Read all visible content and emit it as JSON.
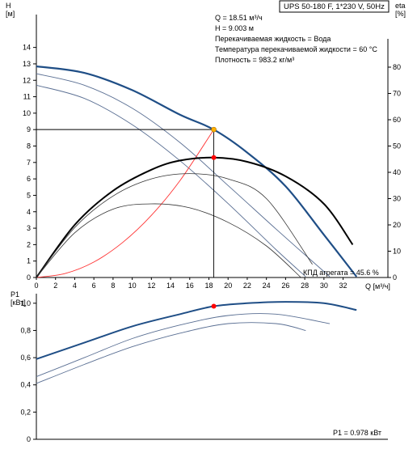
{
  "product_title": "UPS 50-180 F, 1*230 V, 50Hz",
  "info_lines": [
    "Q = 18.51 м³/ч",
    "H = 9.003 м",
    "Перекачиваемая жидкость = Вода",
    "Температура перекачиваемой жидкости = 60 °C",
    "Плотность = 983.2 кг/м³"
  ],
  "eta_label": "КПД агрегата = 45.6 %",
  "p1_label": "P1 = 0.978 кВт",
  "colors": {
    "curve_dark_blue": "#1f4e86",
    "curve_steel_blue": "#5a6f93",
    "efficiency": "#000000",
    "system_curve": "#ff3333",
    "duty_point_h": "#ffb000",
    "duty_point_eta": "#ff0000",
    "axis": "#000000"
  },
  "chart_data": [
    {
      "type": "line",
      "title": "",
      "xlabel": "Q [м³/ч]",
      "ylabel_left": "H [м]",
      "ylabel_right": "eta [%]",
      "xlim": [
        0,
        36
      ],
      "ylim": [
        0,
        16
      ],
      "ylim_right": [
        0,
        100
      ],
      "x_ticks": [
        0,
        2,
        4,
        6,
        8,
        10,
        12,
        14,
        16,
        18,
        20,
        22,
        24,
        26,
        28,
        30,
        32
      ],
      "y_ticks": [
        0,
        1,
        2,
        3,
        4,
        5,
        6,
        7,
        8,
        9,
        10,
        11,
        12,
        13,
        14
      ],
      "y_right_ticks": [
        0,
        10,
        20,
        30,
        40,
        50,
        60,
        70,
        80
      ],
      "grid": false,
      "series": [
        {
          "role": "head-speed-3",
          "axis": "left",
          "x": [
            0,
            5,
            10,
            15,
            18.51,
            22,
            26,
            30,
            33.4
          ],
          "y": [
            12.85,
            12.45,
            11.4,
            9.9,
            9.0,
            7.6,
            5.55,
            2.6,
            0.05
          ]
        },
        {
          "role": "head-speed-2",
          "axis": "left",
          "x": [
            0,
            5,
            10,
            15,
            20,
            25,
            30.6
          ],
          "y": [
            12.4,
            11.7,
            10.3,
            8.2,
            5.6,
            2.95,
            0.05
          ]
        },
        {
          "role": "head-speed-1",
          "axis": "left",
          "x": [
            0,
            5,
            10,
            15,
            20,
            25,
            28.1
          ],
          "y": [
            11.7,
            10.9,
            9.3,
            7.1,
            4.5,
            1.7,
            0.05
          ]
        },
        {
          "role": "system-curve",
          "axis": "left",
          "x": [
            0,
            3,
            6,
            9,
            12,
            15,
            18.51
          ],
          "y": [
            0,
            0.24,
            0.94,
            2.13,
            3.78,
            5.91,
            9.0
          ]
        },
        {
          "role": "efficiency-speed-3",
          "axis": "right",
          "x": [
            0,
            4,
            8,
            12,
            15,
            18.51,
            22,
            26,
            30,
            33
          ],
          "y": [
            0,
            20,
            33,
            41,
            44.5,
            45.6,
            44,
            38.5,
            28,
            12.5
          ]
        },
        {
          "role": "efficiency-speed-2",
          "axis": "right",
          "x": [
            0,
            4,
            8,
            12,
            16,
            20,
            24,
            28.8
          ],
          "y": [
            0,
            19,
            31,
            37.5,
            39.5,
            37.5,
            30,
            5
          ]
        },
        {
          "role": "efficiency-speed-1",
          "axis": "right",
          "x": [
            0,
            4,
            8,
            12,
            16,
            20,
            24,
            27.6
          ],
          "y": [
            0,
            17,
            26,
            28,
            26.5,
            21,
            12,
            0
          ]
        }
      ],
      "duty_point": {
        "q": 18.51,
        "h": 9.003,
        "eta": 45.6
      }
    },
    {
      "type": "line",
      "title": "",
      "xlabel": "",
      "ylabel": "P1 [кВт]",
      "xlim": [
        0,
        36
      ],
      "ylim": [
        0,
        1.1
      ],
      "y_ticks": [
        0,
        0.2,
        0.4,
        0.6,
        0.8,
        1.0
      ],
      "y_tick_labels": [
        "0",
        "0,2",
        "0,4",
        "0,6",
        "0,8",
        "1,0"
      ],
      "grid": false,
      "series": [
        {
          "role": "power-speed-3",
          "x": [
            0,
            5,
            10,
            15,
            18.51,
            22,
            26,
            30,
            33.4
          ],
          "y": [
            0.59,
            0.71,
            0.83,
            0.92,
            0.978,
            1.0,
            1.01,
            1.0,
            0.95
          ]
        },
        {
          "role": "power-speed-2",
          "x": [
            0,
            5,
            10,
            15,
            20,
            25,
            30.6
          ],
          "y": [
            0.46,
            0.6,
            0.74,
            0.84,
            0.91,
            0.92,
            0.85
          ]
        },
        {
          "role": "power-speed-1",
          "x": [
            0,
            5,
            10,
            15,
            20,
            25,
            28.1
          ],
          "y": [
            0.41,
            0.55,
            0.68,
            0.78,
            0.85,
            0.85,
            0.8
          ]
        }
      ],
      "duty_point": {
        "q": 18.51,
        "p1": 0.978
      }
    }
  ]
}
